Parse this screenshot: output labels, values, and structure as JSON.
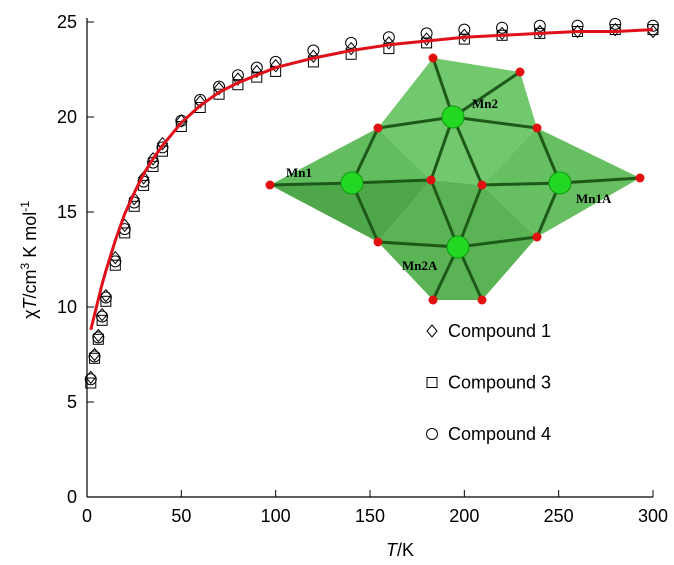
{
  "chart_data": {
    "type": "scatter",
    "x_label": [
      "T",
      "/K"
    ],
    "y_label": [
      "χ",
      "T",
      "/cm",
      "3",
      " K mol",
      "-1"
    ],
    "xlim": [
      0,
      300
    ],
    "xticks": [
      0,
      50,
      100,
      150,
      200,
      250,
      300
    ],
    "ylim": [
      0,
      25
    ],
    "yticks": [
      0,
      5,
      10,
      15,
      20,
      25
    ],
    "x": [
      2,
      4,
      6,
      8,
      10,
      15,
      20,
      25,
      30,
      35,
      40,
      50,
      60,
      70,
      80,
      90,
      100,
      120,
      140,
      160,
      180,
      200,
      220,
      240,
      260,
      280,
      300
    ],
    "series": [
      {
        "name": "Compound 1",
        "marker": "diamond",
        "color": "#000000",
        "values": [
          6.3,
          7.5,
          8.5,
          9.6,
          10.6,
          12.6,
          14.3,
          15.7,
          16.8,
          17.8,
          18.6,
          19.8,
          20.8,
          21.5,
          22.0,
          22.4,
          22.7,
          23.2,
          23.6,
          23.9,
          24.1,
          24.3,
          24.4,
          24.5,
          24.5,
          24.6,
          24.5
        ]
      },
      {
        "name": "Compound 3",
        "marker": "square",
        "color": "#000000",
        "values": [
          6.0,
          7.3,
          8.3,
          9.3,
          10.3,
          12.2,
          13.9,
          15.3,
          16.4,
          17.4,
          18.2,
          19.5,
          20.5,
          21.2,
          21.7,
          22.1,
          22.4,
          22.9,
          23.3,
          23.6,
          23.9,
          24.1,
          24.3,
          24.4,
          24.5,
          24.6,
          24.6
        ]
      },
      {
        "name": "Compound 4",
        "marker": "circle",
        "color": "#000000",
        "values": [
          6.2,
          7.4,
          8.4,
          9.5,
          10.5,
          12.4,
          14.1,
          15.5,
          16.6,
          17.6,
          18.4,
          19.8,
          20.9,
          21.6,
          22.2,
          22.6,
          22.9,
          23.5,
          23.9,
          24.2,
          24.4,
          24.6,
          24.7,
          24.8,
          24.8,
          24.9,
          24.8
        ]
      },
      {
        "marker": "line",
        "color": "#e0101a",
        "values": [
          8.8,
          9.6,
          10.4,
          11.2,
          11.9,
          13.5,
          14.9,
          16.0,
          17.0,
          17.8,
          18.5,
          19.7,
          20.6,
          21.3,
          21.8,
          22.2,
          22.6,
          23.1,
          23.5,
          23.8,
          24.0,
          24.2,
          24.3,
          24.4,
          24.5,
          24.5,
          24.6
        ]
      }
    ],
    "inset_labels": [
      "Mn1",
      "Mn2",
      "Mn1A",
      "Mn2A"
    ]
  }
}
